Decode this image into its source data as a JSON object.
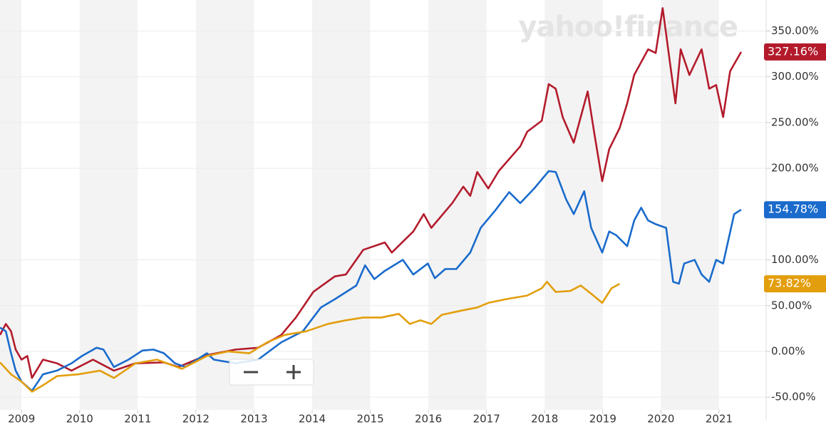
{
  "chart_data": {
    "type": "line",
    "watermark": "yahoo!finance",
    "xlim": [
      2008.63,
      2021.81
    ],
    "xticks": [
      2009,
      2010,
      2011,
      2012,
      2013,
      2014,
      2015,
      2016,
      2017,
      2018,
      2019,
      2020,
      2021
    ],
    "ylim": [
      -60,
      380
    ],
    "yticks": [
      {
        "value": -50,
        "label": "-50.00%"
      },
      {
        "value": 0,
        "label": "0.00%"
      },
      {
        "value": 50,
        "label": "50.00%"
      },
      {
        "value": 100,
        "label": "100.00%"
      },
      {
        "value": 200,
        "label": "200.00%"
      },
      {
        "value": 250,
        "label": "250.00%"
      },
      {
        "value": 300,
        "label": "300.00%"
      },
      {
        "value": 350,
        "label": "350.00%"
      }
    ],
    "grid": true,
    "series": [
      {
        "color": "#b31b2c",
        "x": [
          2008.63,
          2008.73,
          2008.82,
          2008.9,
          2009.0,
          2009.1,
          2009.18,
          2009.37,
          2009.61,
          2009.86,
          2010.23,
          2010.59,
          2010.96,
          2011.45,
          2011.7,
          2012.19,
          2012.68,
          2013.07,
          2013.47,
          2013.72,
          2014.02,
          2014.39,
          2014.58,
          2014.88,
          2015.25,
          2015.37,
          2015.74,
          2015.92,
          2016.05,
          2016.41,
          2016.6,
          2016.72,
          2016.84,
          2017.03,
          2017.21,
          2017.58,
          2017.7,
          2017.95,
          2018.07,
          2018.19,
          2018.31,
          2018.5,
          2018.62,
          2018.74,
          2018.86,
          2018.99,
          2019.11,
          2019.29,
          2019.42,
          2019.54,
          2019.78,
          2019.91,
          2020.03,
          2020.15,
          2020.25,
          2020.34,
          2020.49,
          2020.7,
          2020.83,
          2020.95,
          2021.07,
          2021.19,
          2021.38
        ],
        "values": [
          18,
          30,
          22,
          2,
          -9,
          -5,
          -29,
          -9,
          -13,
          -21,
          -9,
          -21,
          -13,
          -12,
          -17,
          -4,
          2,
          4,
          18,
          37,
          65,
          82,
          84,
          111,
          119,
          108,
          131,
          150,
          135,
          162,
          180,
          170,
          196,
          178,
          197,
          224,
          240,
          252,
          292,
          287,
          256,
          228,
          256,
          284,
          236,
          186,
          221,
          244,
          271,
          302,
          330,
          326,
          375,
          318,
          271,
          330,
          302,
          330,
          287,
          291,
          256,
          306,
          327.16
        ],
        "last_label": {
          "value": 327.16,
          "label": "327.16%"
        }
      },
      {
        "color": "#1a6bcc",
        "x": [
          2008.63,
          2008.73,
          2008.82,
          2008.9,
          2009.0,
          2009.18,
          2009.37,
          2009.61,
          2009.86,
          2010.04,
          2010.29,
          2010.41,
          2010.59,
          2010.84,
          2011.08,
          2011.27,
          2011.45,
          2011.64,
          2011.82,
          2012.19,
          2012.31,
          2012.68,
          2013.07,
          2013.47,
          2013.84,
          2014.15,
          2014.39,
          2014.76,
          2014.91,
          2015.07,
          2015.25,
          2015.56,
          2015.74,
          2015.99,
          2016.11,
          2016.29,
          2016.48,
          2016.72,
          2016.9,
          2017.15,
          2017.39,
          2017.58,
          2017.82,
          2018.07,
          2018.19,
          2018.37,
          2018.5,
          2018.68,
          2018.8,
          2018.99,
          2019.11,
          2019.23,
          2019.42,
          2019.54,
          2019.66,
          2019.78,
          2019.91,
          2020.09,
          2020.21,
          2020.31,
          2020.4,
          2020.58,
          2020.7,
          2020.83,
          2020.95,
          2021.07,
          2021.26,
          2021.38
        ],
        "values": [
          26,
          22,
          -2,
          -21,
          -33,
          -43,
          -25,
          -21,
          -13,
          -5,
          4,
          2,
          -17,
          -9,
          1,
          2,
          -2,
          -13,
          -17,
          -2,
          -9,
          -13,
          -9,
          10,
          22,
          48,
          57,
          72,
          94,
          79,
          88,
          100,
          84,
          96,
          80,
          90,
          90,
          108,
          135,
          154,
          174,
          162,
          178,
          197,
          196,
          166,
          150,
          175,
          135,
          108,
          131,
          127,
          115,
          143,
          157,
          143,
          139,
          135,
          76,
          74,
          96,
          100,
          84,
          76,
          100,
          96,
          150,
          154.78
        ],
        "last_label": {
          "value": 154.78,
          "label": "154.78%"
        }
      },
      {
        "color": "#e29e0c",
        "x": [
          2008.63,
          2008.82,
          2009.0,
          2009.18,
          2009.37,
          2009.61,
          2009.98,
          2010.35,
          2010.59,
          2010.96,
          2011.33,
          2011.76,
          2012.19,
          2012.55,
          2012.92,
          2013.23,
          2013.53,
          2013.9,
          2014.27,
          2014.58,
          2014.88,
          2015.19,
          2015.49,
          2015.68,
          2015.86,
          2016.05,
          2016.23,
          2016.6,
          2016.84,
          2017.03,
          2017.33,
          2017.7,
          2017.95,
          2018.04,
          2018.19,
          2018.44,
          2018.62,
          2018.8,
          2018.99,
          2019.15,
          2019.29
        ],
        "values": [
          -12,
          -25,
          -33,
          -44,
          -37,
          -27,
          -25,
          -21,
          -29,
          -13,
          -9,
          -19,
          -5,
          0,
          -2,
          10,
          18,
          22,
          30,
          34,
          37,
          37,
          41,
          30,
          34,
          30,
          40,
          45,
          48,
          53,
          57,
          61,
          69,
          76,
          65,
          66,
          72,
          63,
          53,
          69,
          73.82
        ],
        "last_label": {
          "value": 73.82,
          "label": "73.82%"
        }
      }
    ]
  }
}
